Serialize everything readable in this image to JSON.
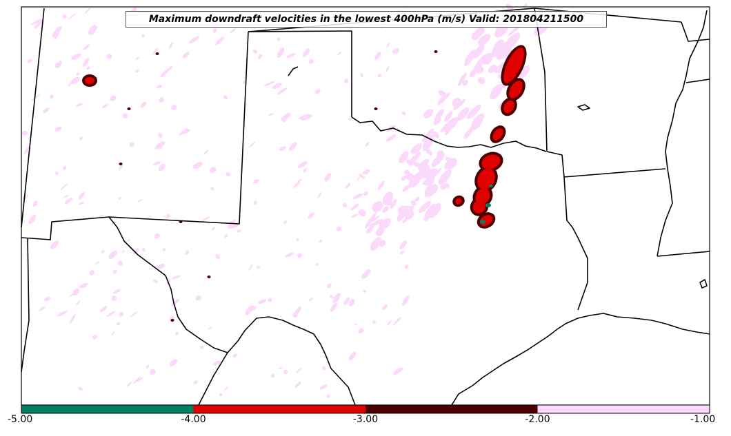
{
  "title": "Maximum downdraft velocities in the lowest 400hPa (m/s) Valid: 201804211500",
  "field": {
    "name": "maximum downdraft velocity",
    "units": "m/s",
    "valid_time": "201804211500"
  },
  "colorbar": {
    "orientation": "horizontal",
    "range": [
      -5.0,
      -1.0
    ],
    "ticks": [
      "-5.00",
      "-4.00",
      "-3.00",
      "-2.00",
      "-1.00"
    ],
    "bins": [
      {
        "from": -5.0,
        "to": -4.0,
        "color": "#008060"
      },
      {
        "from": -4.0,
        "to": -3.0,
        "color": "#e00000"
      },
      {
        "from": -3.0,
        "to": -2.0,
        "color": "#4a0000"
      },
      {
        "from": -2.0,
        "to": -1.0,
        "color": "#fbd9fb"
      }
    ]
  },
  "map": {
    "region": "Southern Plains, USA",
    "background": "#ffffff",
    "boundary_color": "#000000"
  }
}
